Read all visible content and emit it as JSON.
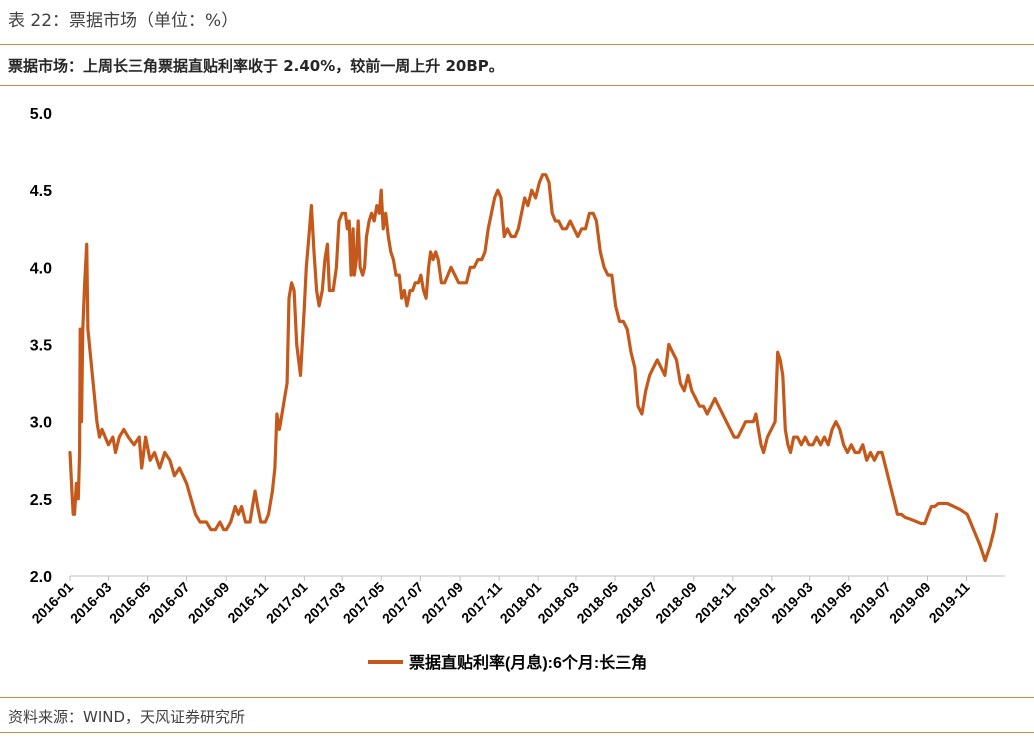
{
  "caption": "表 22：票据市场（单位：%）",
  "subtitle": "票据市场：上周长三角票据直贴利率收于 2.40%，较前一周上升 20BP。",
  "source": "资料来源：WIND，天风证券研究所",
  "colors": {
    "rule": "#d28a3c",
    "line": "#c5591b"
  },
  "chart_data": {
    "type": "line",
    "x_tick_labels": [
      "2016-01",
      "2016-03",
      "2016-05",
      "2016-07",
      "2016-09",
      "2016-11",
      "2017-01",
      "2017-03",
      "2017-05",
      "2017-07",
      "2017-09",
      "2017-11",
      "2018-01",
      "2018-03",
      "2018-05",
      "2018-07",
      "2018-09",
      "2018-11",
      "2019-01",
      "2019-03",
      "2019-05",
      "2019-07",
      "2019-09",
      "2019-11"
    ],
    "y_tick_labels": [
      "2.0",
      "2.5",
      "3.0",
      "3.5",
      "4.0",
      "4.5",
      "5.0"
    ],
    "ylim": [
      2.0,
      5.0
    ],
    "xlim": [
      "2016-01-01",
      "2019-12-31"
    ],
    "legend_position": "bottom",
    "grid": false,
    "series": [
      {
        "name": "票据直贴利率(月息):6个月:长三角",
        "points": [
          [
            "2016-01-01",
            2.8
          ],
          [
            "2016-01-04",
            2.55
          ],
          [
            "2016-01-06",
            2.4
          ],
          [
            "2016-01-08",
            2.4
          ],
          [
            "2016-01-11",
            2.6
          ],
          [
            "2016-01-14",
            2.5
          ],
          [
            "2016-01-16",
            2.8
          ],
          [
            "2016-01-17",
            3.6
          ],
          [
            "2016-01-19",
            3.0
          ],
          [
            "2016-01-21",
            3.6
          ],
          [
            "2016-01-24",
            3.9
          ],
          [
            "2016-01-27",
            4.15
          ],
          [
            "2016-01-29",
            3.6
          ],
          [
            "2016-02-05",
            3.3
          ],
          [
            "2016-02-12",
            3.0
          ],
          [
            "2016-02-16",
            2.9
          ],
          [
            "2016-02-20",
            2.95
          ],
          [
            "2016-02-25",
            2.9
          ],
          [
            "2016-03-01",
            2.85
          ],
          [
            "2016-03-08",
            2.9
          ],
          [
            "2016-03-12",
            2.8
          ],
          [
            "2016-03-18",
            2.9
          ],
          [
            "2016-03-25",
            2.95
          ],
          [
            "2016-04-01",
            2.9
          ],
          [
            "2016-04-10",
            2.85
          ],
          [
            "2016-04-18",
            2.9
          ],
          [
            "2016-04-22",
            2.7
          ],
          [
            "2016-04-28",
            2.9
          ],
          [
            "2016-05-05",
            2.75
          ],
          [
            "2016-05-12",
            2.8
          ],
          [
            "2016-05-20",
            2.7
          ],
          [
            "2016-05-28",
            2.8
          ],
          [
            "2016-06-05",
            2.75
          ],
          [
            "2016-06-12",
            2.65
          ],
          [
            "2016-06-20",
            2.7
          ],
          [
            "2016-07-01",
            2.6
          ],
          [
            "2016-07-08",
            2.5
          ],
          [
            "2016-07-15",
            2.4
          ],
          [
            "2016-07-22",
            2.35
          ],
          [
            "2016-08-01",
            2.35
          ],
          [
            "2016-08-08",
            2.3
          ],
          [
            "2016-08-15",
            2.3
          ],
          [
            "2016-08-22",
            2.35
          ],
          [
            "2016-08-28",
            2.3
          ],
          [
            "2016-09-01",
            2.3
          ],
          [
            "2016-09-08",
            2.35
          ],
          [
            "2016-09-15",
            2.45
          ],
          [
            "2016-09-20",
            2.4
          ],
          [
            "2016-09-25",
            2.45
          ],
          [
            "2016-10-01",
            2.35
          ],
          [
            "2016-10-08",
            2.35
          ],
          [
            "2016-10-12",
            2.45
          ],
          [
            "2016-10-16",
            2.55
          ],
          [
            "2016-10-20",
            2.45
          ],
          [
            "2016-10-25",
            2.35
          ],
          [
            "2016-11-01",
            2.35
          ],
          [
            "2016-11-06",
            2.4
          ],
          [
            "2016-11-12",
            2.55
          ],
          [
            "2016-11-16",
            2.7
          ],
          [
            "2016-11-19",
            3.05
          ],
          [
            "2016-11-23",
            2.95
          ],
          [
            "2016-11-27",
            3.05
          ],
          [
            "2016-12-01",
            3.15
          ],
          [
            "2016-12-05",
            3.25
          ],
          [
            "2016-12-08",
            3.8
          ],
          [
            "2016-12-12",
            3.9
          ],
          [
            "2016-12-16",
            3.85
          ],
          [
            "2016-12-20",
            3.5
          ],
          [
            "2016-12-26",
            3.3
          ],
          [
            "2017-01-01",
            3.75
          ],
          [
            "2017-01-04",
            4.0
          ],
          [
            "2017-01-08",
            4.2
          ],
          [
            "2017-01-12",
            4.4
          ],
          [
            "2017-01-16",
            4.1
          ],
          [
            "2017-01-20",
            3.85
          ],
          [
            "2017-01-24",
            3.75
          ],
          [
            "2017-01-29",
            3.85
          ],
          [
            "2017-02-02",
            4.05
          ],
          [
            "2017-02-06",
            4.15
          ],
          [
            "2017-02-09",
            3.85
          ],
          [
            "2017-02-15",
            3.85
          ],
          [
            "2017-02-20",
            4.0
          ],
          [
            "2017-02-24",
            4.3
          ],
          [
            "2017-03-01",
            4.35
          ],
          [
            "2017-03-06",
            4.35
          ],
          [
            "2017-03-09",
            4.25
          ],
          [
            "2017-03-12",
            4.3
          ],
          [
            "2017-03-15",
            3.95
          ],
          [
            "2017-03-18",
            4.25
          ],
          [
            "2017-03-20",
            3.95
          ],
          [
            "2017-03-23",
            4.05
          ],
          [
            "2017-03-26",
            4.3
          ],
          [
            "2017-03-29",
            4.0
          ],
          [
            "2017-04-02",
            3.95
          ],
          [
            "2017-04-05",
            4.0
          ],
          [
            "2017-04-08",
            4.2
          ],
          [
            "2017-04-12",
            4.3
          ],
          [
            "2017-04-16",
            4.35
          ],
          [
            "2017-04-20",
            4.3
          ],
          [
            "2017-04-24",
            4.4
          ],
          [
            "2017-04-28",
            4.35
          ],
          [
            "2017-05-01",
            4.5
          ],
          [
            "2017-05-04",
            4.25
          ],
          [
            "2017-05-08",
            4.35
          ],
          [
            "2017-05-12",
            4.2
          ],
          [
            "2017-05-16",
            4.1
          ],
          [
            "2017-05-20",
            4.05
          ],
          [
            "2017-05-24",
            3.95
          ],
          [
            "2017-05-29",
            3.95
          ],
          [
            "2017-06-02",
            3.8
          ],
          [
            "2017-06-06",
            3.85
          ],
          [
            "2017-06-10",
            3.75
          ],
          [
            "2017-06-15",
            3.85
          ],
          [
            "2017-06-19",
            3.85
          ],
          [
            "2017-06-23",
            3.9
          ],
          [
            "2017-06-28",
            3.9
          ],
          [
            "2017-07-02",
            3.95
          ],
          [
            "2017-07-06",
            3.85
          ],
          [
            "2017-07-10",
            3.8
          ],
          [
            "2017-07-14",
            4.0
          ],
          [
            "2017-07-17",
            4.1
          ],
          [
            "2017-07-21",
            4.05
          ],
          [
            "2017-07-25",
            4.1
          ],
          [
            "2017-07-29",
            4.05
          ],
          [
            "2017-08-03",
            3.9
          ],
          [
            "2017-08-08",
            3.9
          ],
          [
            "2017-08-13",
            3.95
          ],
          [
            "2017-08-18",
            4.0
          ],
          [
            "2017-08-24",
            3.95
          ],
          [
            "2017-08-30",
            3.9
          ],
          [
            "2017-09-05",
            3.9
          ],
          [
            "2017-09-11",
            3.9
          ],
          [
            "2017-09-17",
            4.0
          ],
          [
            "2017-09-23",
            4.0
          ],
          [
            "2017-09-29",
            4.05
          ],
          [
            "2017-10-05",
            4.05
          ],
          [
            "2017-10-10",
            4.1
          ],
          [
            "2017-10-15",
            4.25
          ],
          [
            "2017-10-20",
            4.35
          ],
          [
            "2017-10-25",
            4.45
          ],
          [
            "2017-10-30",
            4.5
          ],
          [
            "2017-11-04",
            4.45
          ],
          [
            "2017-11-09",
            4.2
          ],
          [
            "2017-11-14",
            4.25
          ],
          [
            "2017-11-20",
            4.2
          ],
          [
            "2017-11-26",
            4.2
          ],
          [
            "2017-12-01",
            4.25
          ],
          [
            "2017-12-06",
            4.35
          ],
          [
            "2017-12-11",
            4.45
          ],
          [
            "2017-12-16",
            4.4
          ],
          [
            "2017-12-22",
            4.5
          ],
          [
            "2017-12-28",
            4.45
          ],
          [
            "2018-01-03",
            4.55
          ],
          [
            "2018-01-08",
            4.6
          ],
          [
            "2018-01-13",
            4.6
          ],
          [
            "2018-01-18",
            4.55
          ],
          [
            "2018-01-23",
            4.35
          ],
          [
            "2018-01-28",
            4.3
          ],
          [
            "2018-02-02",
            4.3
          ],
          [
            "2018-02-08",
            4.25
          ],
          [
            "2018-02-14",
            4.25
          ],
          [
            "2018-02-20",
            4.3
          ],
          [
            "2018-02-26",
            4.25
          ],
          [
            "2018-03-04",
            4.2
          ],
          [
            "2018-03-10",
            4.25
          ],
          [
            "2018-03-16",
            4.25
          ],
          [
            "2018-03-22",
            4.35
          ],
          [
            "2018-03-28",
            4.35
          ],
          [
            "2018-04-02",
            4.3
          ],
          [
            "2018-04-08",
            4.1
          ],
          [
            "2018-04-14",
            4.0
          ],
          [
            "2018-04-20",
            3.95
          ],
          [
            "2018-04-26",
            3.95
          ],
          [
            "2018-05-02",
            3.75
          ],
          [
            "2018-05-08",
            3.65
          ],
          [
            "2018-05-14",
            3.65
          ],
          [
            "2018-05-20",
            3.6
          ],
          [
            "2018-05-26",
            3.45
          ],
          [
            "2018-06-01",
            3.35
          ],
          [
            "2018-06-06",
            3.1
          ],
          [
            "2018-06-12",
            3.05
          ],
          [
            "2018-06-18",
            3.2
          ],
          [
            "2018-06-24",
            3.3
          ],
          [
            "2018-06-30",
            3.35
          ],
          [
            "2018-07-06",
            3.4
          ],
          [
            "2018-07-12",
            3.35
          ],
          [
            "2018-07-18",
            3.3
          ],
          [
            "2018-07-24",
            3.5
          ],
          [
            "2018-07-30",
            3.45
          ],
          [
            "2018-08-05",
            3.4
          ],
          [
            "2018-08-11",
            3.25
          ],
          [
            "2018-08-17",
            3.2
          ],
          [
            "2018-08-23",
            3.3
          ],
          [
            "2018-08-29",
            3.2
          ],
          [
            "2018-09-04",
            3.15
          ],
          [
            "2018-09-10",
            3.1
          ],
          [
            "2018-09-16",
            3.1
          ],
          [
            "2018-09-22",
            3.05
          ],
          [
            "2018-09-28",
            3.1
          ],
          [
            "2018-10-04",
            3.15
          ],
          [
            "2018-10-10",
            3.1
          ],
          [
            "2018-10-16",
            3.05
          ],
          [
            "2018-10-22",
            3.0
          ],
          [
            "2018-10-28",
            2.95
          ],
          [
            "2018-11-03",
            2.9
          ],
          [
            "2018-11-09",
            2.9
          ],
          [
            "2018-11-15",
            2.95
          ],
          [
            "2018-11-21",
            3.0
          ],
          [
            "2018-11-27",
            3.0
          ],
          [
            "2018-12-03",
            3.0
          ],
          [
            "2018-12-07",
            3.05
          ],
          [
            "2018-12-11",
            2.95
          ],
          [
            "2018-12-15",
            2.85
          ],
          [
            "2018-12-19",
            2.8
          ],
          [
            "2018-12-25",
            2.9
          ],
          [
            "2018-12-31",
            2.95
          ],
          [
            "2019-01-06",
            3.0
          ],
          [
            "2019-01-10",
            3.45
          ],
          [
            "2019-01-14",
            3.4
          ],
          [
            "2019-01-18",
            3.3
          ],
          [
            "2019-01-22",
            2.95
          ],
          [
            "2019-01-26",
            2.85
          ],
          [
            "2019-01-30",
            2.8
          ],
          [
            "2019-02-04",
            2.9
          ],
          [
            "2019-02-10",
            2.9
          ],
          [
            "2019-02-16",
            2.85
          ],
          [
            "2019-02-22",
            2.9
          ],
          [
            "2019-02-28",
            2.85
          ],
          [
            "2019-03-06",
            2.85
          ],
          [
            "2019-03-12",
            2.9
          ],
          [
            "2019-03-18",
            2.85
          ],
          [
            "2019-03-24",
            2.9
          ],
          [
            "2019-03-30",
            2.85
          ],
          [
            "2019-04-05",
            2.95
          ],
          [
            "2019-04-11",
            3.0
          ],
          [
            "2019-04-17",
            2.95
          ],
          [
            "2019-04-23",
            2.85
          ],
          [
            "2019-04-29",
            2.8
          ],
          [
            "2019-05-05",
            2.85
          ],
          [
            "2019-05-11",
            2.8
          ],
          [
            "2019-05-17",
            2.8
          ],
          [
            "2019-05-23",
            2.85
          ],
          [
            "2019-05-29",
            2.75
          ],
          [
            "2019-06-04",
            2.8
          ],
          [
            "2019-06-10",
            2.75
          ],
          [
            "2019-06-16",
            2.8
          ],
          [
            "2019-06-22",
            2.8
          ],
          [
            "2019-06-28",
            2.7
          ],
          [
            "2019-07-04",
            2.6
          ],
          [
            "2019-07-10",
            2.5
          ],
          [
            "2019-07-16",
            2.4
          ],
          [
            "2019-07-22",
            2.4
          ],
          [
            "2019-07-28",
            2.38
          ],
          [
            "2019-08-04",
            2.37
          ],
          [
            "2019-08-10",
            2.36
          ],
          [
            "2019-08-16",
            2.35
          ],
          [
            "2019-08-22",
            2.34
          ],
          [
            "2019-08-28",
            2.34
          ],
          [
            "2019-09-02",
            2.4
          ],
          [
            "2019-09-07",
            2.45
          ],
          [
            "2019-09-12",
            2.45
          ],
          [
            "2019-09-18",
            2.47
          ],
          [
            "2019-09-24",
            2.47
          ],
          [
            "2019-10-02",
            2.47
          ],
          [
            "2019-10-12",
            2.45
          ],
          [
            "2019-10-22",
            2.43
          ],
          [
            "2019-11-02",
            2.4
          ],
          [
            "2019-11-12",
            2.3
          ],
          [
            "2019-11-22",
            2.2
          ],
          [
            "2019-11-30",
            2.1
          ],
          [
            "2019-12-08",
            2.2
          ],
          [
            "2019-12-14",
            2.3
          ],
          [
            "2019-12-18",
            2.4
          ]
        ]
      }
    ]
  }
}
